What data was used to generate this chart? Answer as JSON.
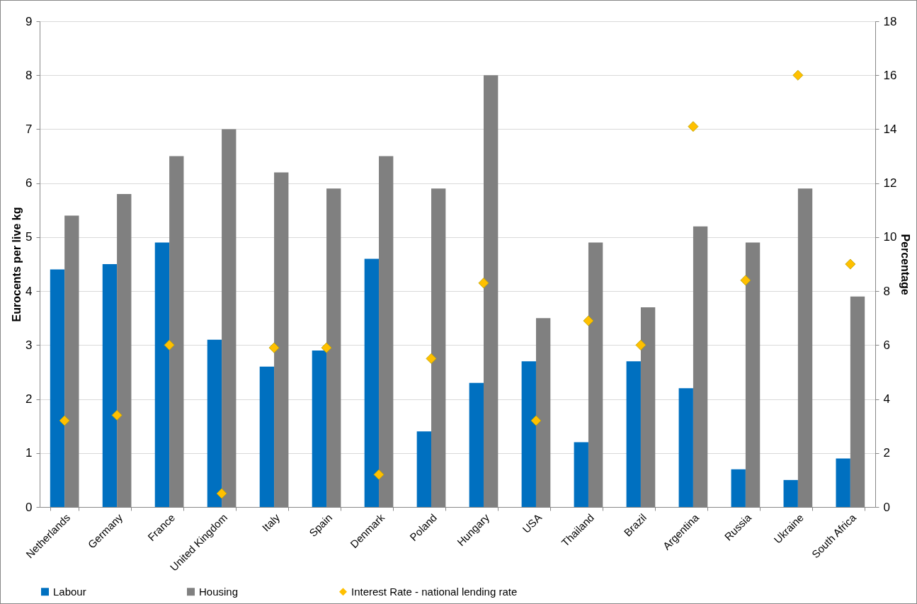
{
  "chart_data": {
    "type": "bar",
    "ylabel": "Eurocents per live kg",
    "y2label": "Percentage",
    "categories": [
      "Netherlands",
      "Germany",
      "France",
      "United Kingdom",
      "Italy",
      "Spain",
      "Denmark",
      "Poland",
      "Hungary",
      "USA",
      "Thailand",
      "Brazil",
      "Argentina",
      "Russia",
      "Ukraine",
      "South Africa"
    ],
    "series": [
      {
        "name": "Labour",
        "color": "#0070c0",
        "values": [
          4.4,
          4.5,
          4.9,
          3.1,
          2.6,
          2.9,
          4.6,
          1.4,
          2.3,
          2.7,
          1.2,
          2.7,
          2.2,
          0.7,
          0.5,
          0.9
        ]
      },
      {
        "name": "Housing",
        "color": "#808080",
        "values": [
          5.4,
          5.8,
          6.5,
          7.0,
          6.2,
          5.9,
          6.5,
          5.9,
          8.0,
          3.5,
          4.9,
          3.7,
          5.2,
          4.9,
          5.9,
          3.9
        ]
      },
      {
        "name": "Interest Rate - national lending rate",
        "type": "scatter",
        "axis": "y2",
        "marker": "diamond",
        "color": "#ffc000",
        "values": [
          3.2,
          3.4,
          6.0,
          0.5,
          5.9,
          5.9,
          1.2,
          5.5,
          8.3,
          3.2,
          6.9,
          6.0,
          14.1,
          8.4,
          16.0,
          9.0
        ]
      }
    ],
    "ylim": [
      0,
      9
    ],
    "yticks": [
      0,
      1,
      2,
      3,
      4,
      5,
      6,
      7,
      8,
      9
    ],
    "y2lim": [
      0,
      18
    ],
    "y2ticks": [
      0,
      2,
      4,
      6,
      8,
      10,
      12,
      14,
      16,
      18
    ],
    "grid": "y",
    "legend": "bottom"
  }
}
